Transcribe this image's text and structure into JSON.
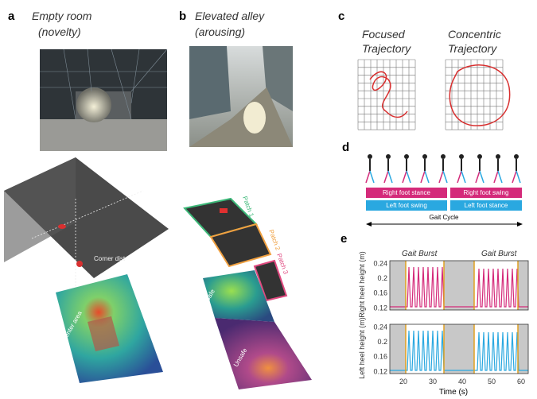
{
  "panel_a": {
    "label": "a",
    "title": "Empty room",
    "subtitle": "(novelty)",
    "room_label": "Corner dist",
    "heatmap_label": "Center area"
  },
  "panel_b": {
    "label": "b",
    "title": "Elevated alley",
    "subtitle": "(arousing)",
    "patches": [
      "Patch 1",
      "Patch 2",
      "Patch 3"
    ],
    "safe": "Safe",
    "unsafe": "Unsafe"
  },
  "panel_c": {
    "label": "c",
    "focused": [
      "Focused",
      "Trajectory"
    ],
    "concentric": [
      "Concentric",
      "Trajectory"
    ]
  },
  "panel_d": {
    "label": "d",
    "right_stance": "Right foot stance",
    "right_swing": "Right foot swing",
    "left_swing": "Left foot swing",
    "left_stance": "Left foot stance",
    "cycle": "Gait Cycle"
  },
  "panel_e": {
    "label": "e",
    "bursts": [
      "Gait Burst",
      "Gait Burst"
    ],
    "right_ylabel": "Right heel height (m)",
    "left_ylabel": "Left heel height (m)",
    "yticks": [
      "0.24",
      "0.2",
      "0.16",
      "0.12"
    ],
    "xticks": [
      "20",
      "30",
      "40",
      "50",
      "60"
    ],
    "xlabel": "Time (s)"
  }
}
